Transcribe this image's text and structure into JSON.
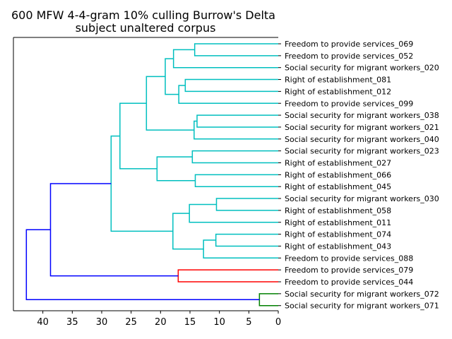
{
  "chart_data": {
    "type": "dendrogram",
    "title": "600 MFW 4-4-gram 10% culling Burrow's Delta",
    "subtitle": "subject unaltered corpus",
    "xlabel": "",
    "ylabel": "",
    "xlim": [
      45,
      0
    ],
    "xticks": [
      40,
      35,
      30,
      25,
      20,
      15,
      10,
      5,
      0
    ],
    "orientation": "left",
    "colors": {
      "cyan": "#00bfbf",
      "blue": "#0000ff",
      "red": "#ff0000",
      "green": "#008000",
      "axis": "#000000"
    },
    "leaves": [
      "Freedom to provide services_069",
      "Freedom to provide services_052",
      "Social security for migrant workers_020",
      "Right of establishment_081",
      "Right of establishment_012",
      "Freedom to provide services_099",
      "Social security for migrant workers_038",
      "Social security for migrant workers_021",
      "Social security for migrant workers_040",
      "Social security for migrant workers_023",
      "Right of establishment_027",
      "Right of establishment_066",
      "Right of establishment_045",
      "Social security for migrant workers_030",
      "Right of establishment_058",
      "Right of establishment_011",
      "Right of establishment_074",
      "Right of establishment_043",
      "Freedom to provide services_088",
      "Freedom to provide services_079",
      "Freedom to provide services_044",
      "Social security for migrant workers_072",
      "Social security for migrant workers_071"
    ],
    "merges": [
      {
        "id": "c1",
        "a": "L0",
        "b": "L1",
        "height": 14.2,
        "color": "cyan"
      },
      {
        "id": "c2",
        "a": "c1",
        "b": "L2",
        "height": 17.8,
        "color": "cyan"
      },
      {
        "id": "c3",
        "a": "L3",
        "b": "L4",
        "height": 15.8,
        "color": "cyan"
      },
      {
        "id": "c4",
        "a": "c3",
        "b": "L5",
        "height": 16.9,
        "color": "cyan"
      },
      {
        "id": "c5",
        "a": "c2",
        "b": "c4",
        "height": 19.2,
        "color": "cyan"
      },
      {
        "id": "c6",
        "a": "L6",
        "b": "L7",
        "height": 13.8,
        "color": "cyan"
      },
      {
        "id": "c7",
        "a": "c6",
        "b": "L8",
        "height": 14.3,
        "color": "cyan"
      },
      {
        "id": "c8",
        "a": "c5",
        "b": "c7",
        "height": 22.4,
        "color": "cyan"
      },
      {
        "id": "c9",
        "a": "L9",
        "b": "L10",
        "height": 14.6,
        "color": "cyan"
      },
      {
        "id": "c10",
        "a": "L11",
        "b": "L12",
        "height": 14.1,
        "color": "cyan"
      },
      {
        "id": "c11",
        "a": "c9",
        "b": "c10",
        "height": 20.6,
        "color": "cyan"
      },
      {
        "id": "c12",
        "a": "c8",
        "b": "c11",
        "height": 26.9,
        "color": "cyan"
      },
      {
        "id": "c13",
        "a": "L13",
        "b": "L14",
        "height": 10.5,
        "color": "cyan"
      },
      {
        "id": "c14",
        "a": "c13",
        "b": "L15",
        "height": 15.1,
        "color": "cyan"
      },
      {
        "id": "c15",
        "a": "L16",
        "b": "L17",
        "height": 10.6,
        "color": "cyan"
      },
      {
        "id": "c16",
        "a": "c15",
        "b": "L18",
        "height": 12.7,
        "color": "cyan"
      },
      {
        "id": "c17",
        "a": "c14",
        "b": "c16",
        "height": 17.9,
        "color": "cyan"
      },
      {
        "id": "c18",
        "a": "c12",
        "b": "c17",
        "height": 28.4,
        "color": "cyan"
      },
      {
        "id": "c19",
        "a": "L19",
        "b": "L20",
        "height": 17.0,
        "color": "red"
      },
      {
        "id": "c20",
        "a": "c18",
        "b": "c19",
        "height": 38.7,
        "color": "blue"
      },
      {
        "id": "c21",
        "a": "L21",
        "b": "L22",
        "height": 3.2,
        "color": "green"
      },
      {
        "id": "c22",
        "a": "c20",
        "b": "c21",
        "height": 42.8,
        "color": "blue"
      }
    ]
  }
}
